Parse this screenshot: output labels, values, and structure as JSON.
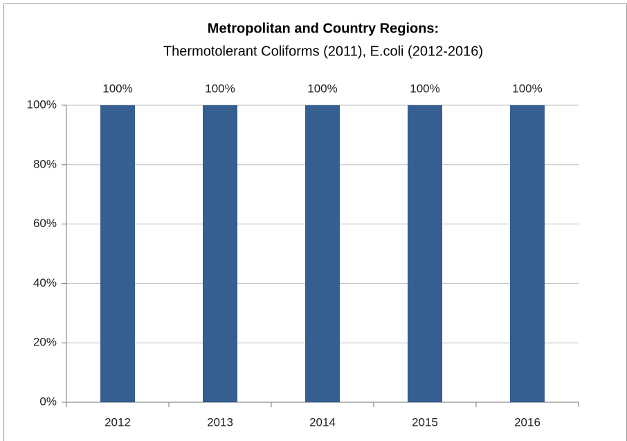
{
  "chart_data": {
    "type": "bar",
    "title": "Metropolitan and Country Regions:",
    "subtitle": "Thermotolerant Coliforms (2011), E.coli (2012-2016)",
    "categories": [
      "2012",
      "2013",
      "2014",
      "2015",
      "2016"
    ],
    "values": [
      100,
      100,
      100,
      100,
      100
    ],
    "value_labels": [
      "100%",
      "100%",
      "100%",
      "100%",
      "100%"
    ],
    "color": "#355e91",
    "ylim": [
      0,
      100
    ],
    "yticks": [
      {
        "value": 0,
        "label": "0%"
      },
      {
        "value": 20,
        "label": "20%"
      },
      {
        "value": 40,
        "label": "40%"
      },
      {
        "value": 60,
        "label": "60%"
      },
      {
        "value": 80,
        "label": "80%"
      },
      {
        "value": 100,
        "label": "100%"
      }
    ],
    "grid": true
  }
}
